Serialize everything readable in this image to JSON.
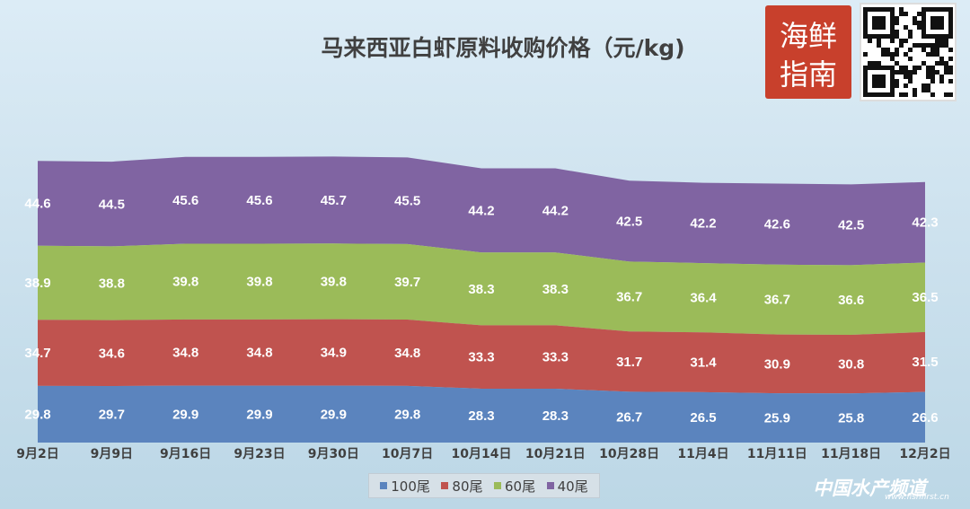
{
  "chart_data": {
    "type": "area",
    "stacked": true,
    "title": "马来西亚白虾原料收购价格（元/kg)",
    "categories": [
      "9月2日",
      "9月9日",
      "9月16日",
      "9月23日",
      "9月30日",
      "10月7日",
      "10月14日",
      "10月21日",
      "10月28日",
      "11月4日",
      "11月11日",
      "11月18日",
      "12月2日"
    ],
    "series": [
      {
        "name": "100尾",
        "color": "#5b84be",
        "values": [
          29.8,
          29.7,
          29.9,
          29.9,
          29.9,
          29.8,
          28.3,
          28.3,
          26.7,
          26.5,
          25.9,
          25.8,
          26.6
        ]
      },
      {
        "name": "80尾",
        "color": "#c0534f",
        "values": [
          34.7,
          34.6,
          34.8,
          34.8,
          34.9,
          34.8,
          33.3,
          33.3,
          31.7,
          31.4,
          30.9,
          30.8,
          31.5
        ]
      },
      {
        "name": "60尾",
        "color": "#9bbb59",
        "values": [
          38.9,
          38.8,
          39.8,
          39.8,
          39.8,
          39.7,
          38.3,
          38.3,
          36.7,
          36.4,
          36.7,
          36.6,
          36.5
        ]
      },
      {
        "name": "40尾",
        "color": "#8064a2",
        "values": [
          44.6,
          44.5,
          45.6,
          45.6,
          45.7,
          45.5,
          44.2,
          44.2,
          42.5,
          42.2,
          42.6,
          42.5,
          42.3
        ]
      }
    ],
    "legend_position": "bottom-center"
  },
  "watermark": {
    "text": "中国水产频道",
    "url": "www.fishfirst.cn"
  },
  "logo": {
    "text": "海鲜指南"
  }
}
